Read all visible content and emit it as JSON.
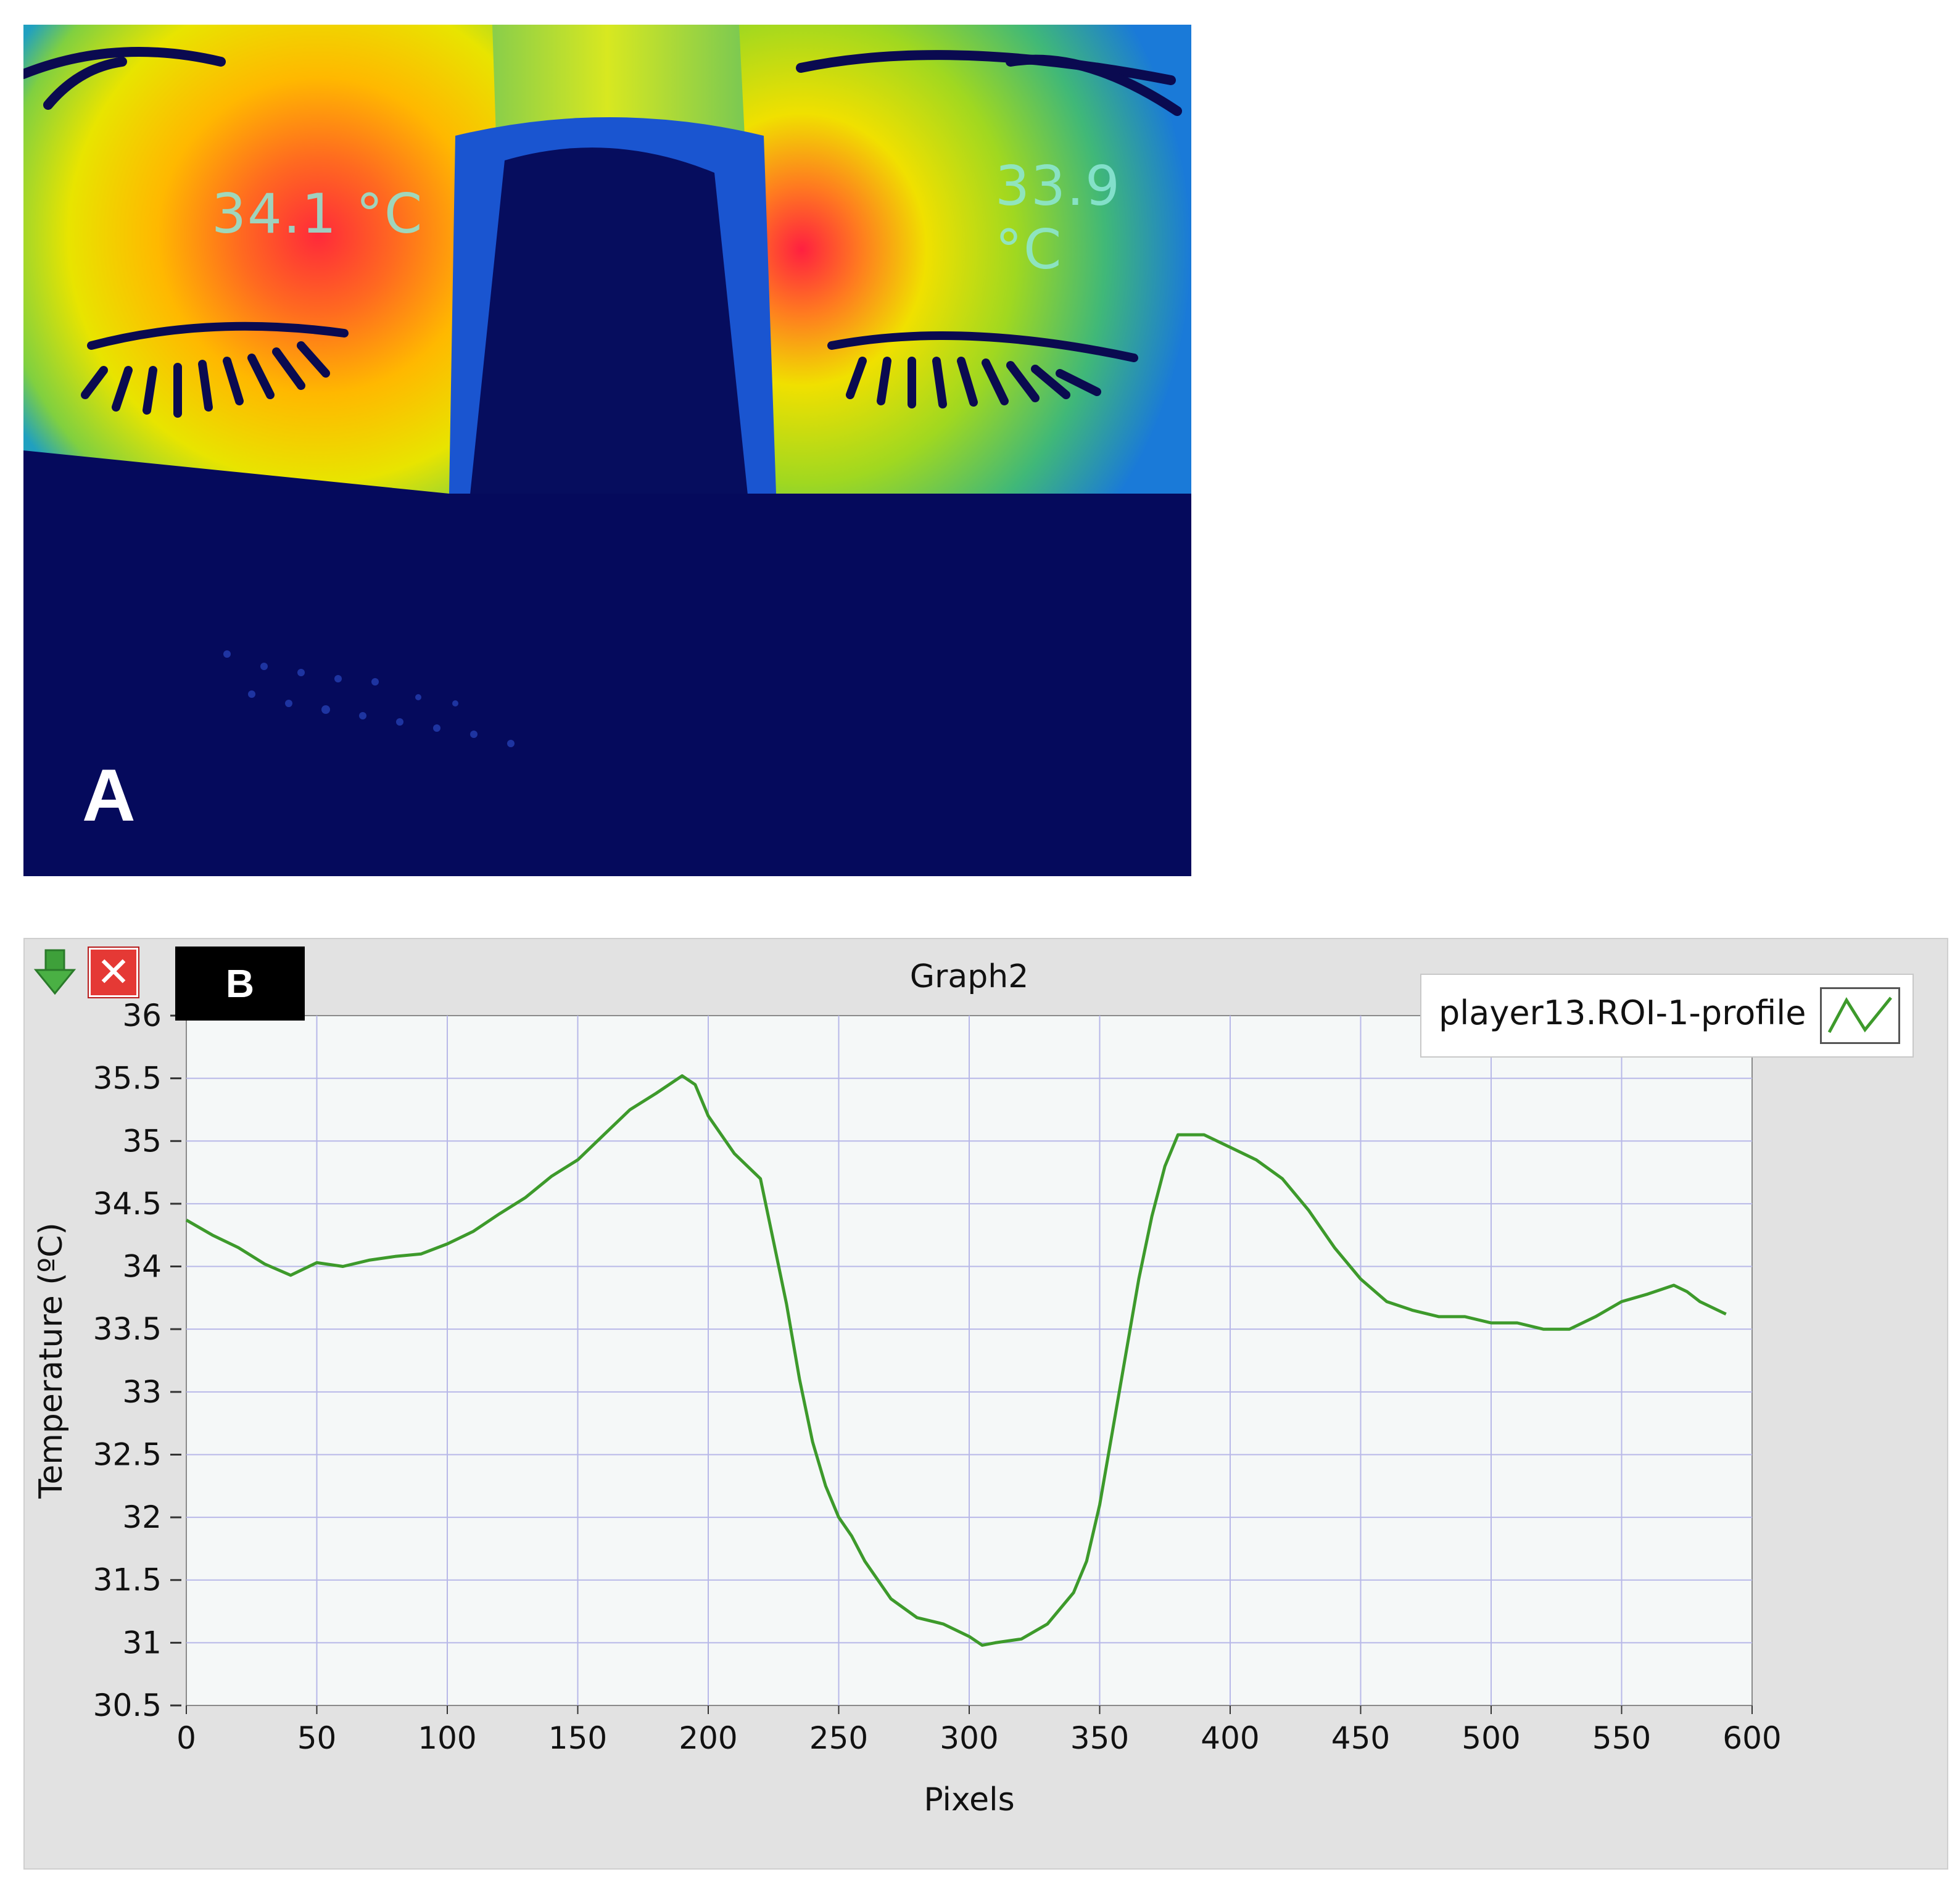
{
  "panel_a": {
    "letter": "A",
    "temp_left": "34.1 °C",
    "temp_right": "33.9 °C"
  },
  "panel_b": {
    "letter": "B",
    "close_icon": "close-icon",
    "export_icon": "down-arrow-icon",
    "colors": {
      "line": "#3d9a2b",
      "plot_bg": "#f5f8f8",
      "grid": "#b8b8e8",
      "window_bg": "#e2e2e2"
    }
  },
  "chart_data": {
    "type": "line",
    "title": "Graph2",
    "xlabel": "Pixels",
    "ylabel": "Temperature (ºC)",
    "xlim": [
      0,
      600
    ],
    "ylim": [
      30.5,
      36
    ],
    "x_ticks": [
      "0",
      "50",
      "100",
      "150",
      "200",
      "250",
      "300",
      "350",
      "400",
      "450",
      "500",
      "550",
      "600"
    ],
    "y_ticks": [
      "36",
      "35.5",
      "35",
      "34.5",
      "34",
      "33.5",
      "33",
      "32.5",
      "32",
      "31.5",
      "31",
      "30.5"
    ],
    "grid": true,
    "legend_position": "top-right",
    "series": [
      {
        "name": "player13.ROI-1-profile",
        "x": [
          0,
          10,
          20,
          30,
          40,
          50,
          60,
          70,
          80,
          90,
          100,
          110,
          120,
          130,
          140,
          150,
          160,
          170,
          180,
          190,
          195,
          200,
          210,
          220,
          225,
          230,
          235,
          240,
          245,
          250,
          255,
          260,
          270,
          280,
          290,
          300,
          305,
          310,
          320,
          330,
          340,
          345,
          350,
          355,
          360,
          365,
          370,
          375,
          380,
          390,
          395,
          400,
          410,
          420,
          430,
          440,
          450,
          460,
          470,
          480,
          490,
          500,
          510,
          520,
          530,
          540,
          550,
          560,
          570,
          575,
          580,
          590
        ],
        "y": [
          34.37,
          34.25,
          34.15,
          34.02,
          33.93,
          34.03,
          34.0,
          34.05,
          34.08,
          34.1,
          34.18,
          34.28,
          34.42,
          34.55,
          34.72,
          34.85,
          35.05,
          35.25,
          35.38,
          35.52,
          35.45,
          35.2,
          34.9,
          34.7,
          34.2,
          33.7,
          33.1,
          32.6,
          32.25,
          32.0,
          31.85,
          31.65,
          31.35,
          31.2,
          31.15,
          31.05,
          30.98,
          31.0,
          31.03,
          31.15,
          31.4,
          31.65,
          32.1,
          32.7,
          33.3,
          33.9,
          34.4,
          34.8,
          35.05,
          35.05,
          35.0,
          34.95,
          34.85,
          34.7,
          34.45,
          34.15,
          33.9,
          33.72,
          33.65,
          33.6,
          33.6,
          33.55,
          33.55,
          33.5,
          33.5,
          33.6,
          33.72,
          33.78,
          33.85,
          33.8,
          33.72,
          33.62
        ]
      }
    ]
  }
}
